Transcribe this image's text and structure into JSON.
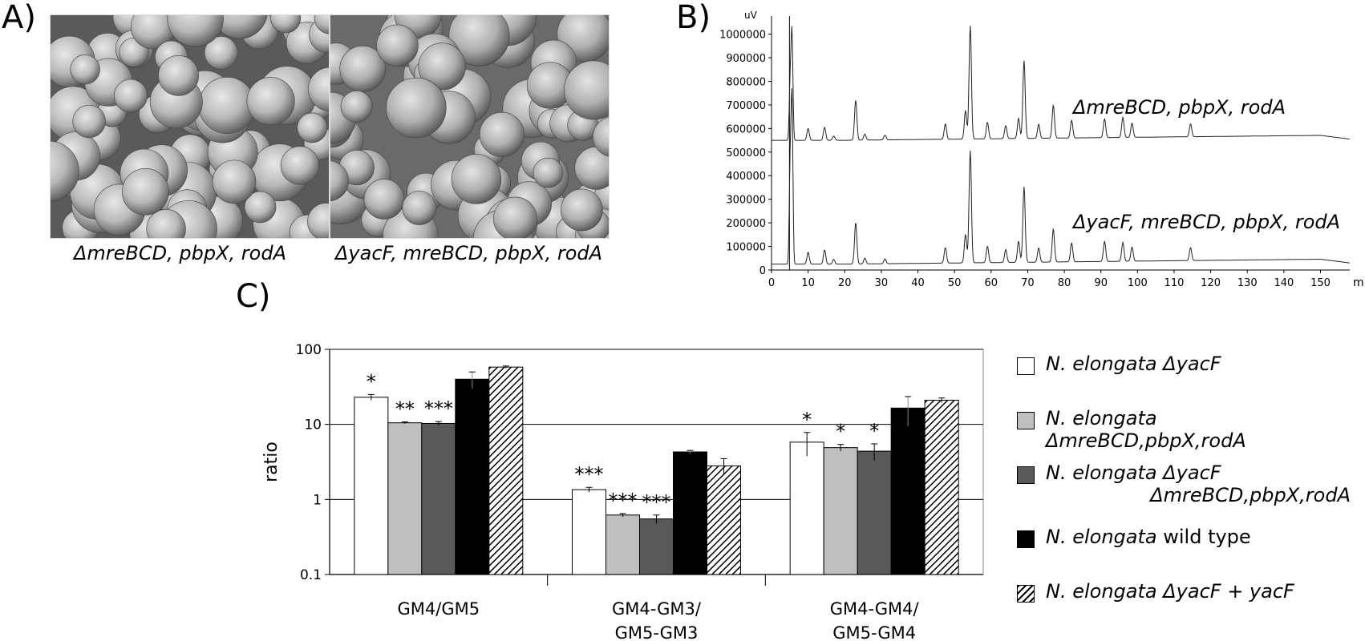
{
  "panelA": {
    "letter": "A)",
    "images": [
      {
        "caption": "ΔmreBCD, pbpX, rodA"
      },
      {
        "caption": "ΔyacF, mreBCD, pbpX, rodA"
      }
    ]
  },
  "panelB": {
    "letter": "B)",
    "y_unit": "uV",
    "x_unit": "min",
    "y_ticks": [
      "1000000",
      "900000",
      "800000",
      "700000",
      "600000",
      "500000",
      "400000",
      "300000",
      "200000",
      "100000",
      "0"
    ],
    "x_ticks": [
      "0",
      "10",
      "20",
      "30",
      "40",
      "50",
      "60",
      "70",
      "80",
      "90",
      "100",
      "110",
      "120",
      "130",
      "140",
      "150"
    ],
    "trace_labels": [
      "ΔmreBCD, pbpX, rodA",
      "ΔyacF, mreBCD, pbpX, rodA"
    ]
  },
  "chart_data": [
    {
      "type": "line",
      "panel": "B",
      "xlim": [
        0,
        158
      ],
      "ylim": [
        0,
        1070000
      ],
      "xlabel": "min",
      "ylabel": "uV",
      "grid": false,
      "series": [
        {
          "name": "ΔmreBCD, pbpX, rodA",
          "baseline": 550000,
          "peaks": [
            {
              "x": 5.1,
              "y": 800000
            },
            {
              "x": 5.6,
              "y": 995000
            },
            {
              "x": 10,
              "y": 600000
            },
            {
              "x": 14.5,
              "y": 605000
            },
            {
              "x": 17,
              "y": 568000
            },
            {
              "x": 23,
              "y": 720000
            },
            {
              "x": 25.5,
              "y": 575000
            },
            {
              "x": 31,
              "y": 570000
            },
            {
              "x": 47.5,
              "y": 615000
            },
            {
              "x": 53,
              "y": 670000
            },
            {
              "x": 54.3,
              "y": 1030000
            },
            {
              "x": 59,
              "y": 620000
            },
            {
              "x": 64,
              "y": 605000
            },
            {
              "x": 67.5,
              "y": 635000
            },
            {
              "x": 69,
              "y": 880000
            },
            {
              "x": 73,
              "y": 610000
            },
            {
              "x": 77,
              "y": 690000
            },
            {
              "x": 82,
              "y": 625000
            },
            {
              "x": 91,
              "y": 630000
            },
            {
              "x": 96,
              "y": 635000
            },
            {
              "x": 98.5,
              "y": 610000
            },
            {
              "x": 114.5,
              "y": 605000
            }
          ],
          "end_value": 555000
        },
        {
          "name": "ΔyacF, mreBCD, pbpX, rodA",
          "baseline": 25000,
          "peaks": [
            {
              "x": 5.1,
              "y": 440000
            },
            {
              "x": 5.6,
              "y": 705000
            },
            {
              "x": 10,
              "y": 75000
            },
            {
              "x": 14.5,
              "y": 85000
            },
            {
              "x": 17,
              "y": 45000
            },
            {
              "x": 23,
              "y": 200000
            },
            {
              "x": 25.5,
              "y": 50000
            },
            {
              "x": 31,
              "y": 45000
            },
            {
              "x": 47.5,
              "y": 90000
            },
            {
              "x": 53,
              "y": 145000
            },
            {
              "x": 54.3,
              "y": 500000
            },
            {
              "x": 59,
              "y": 95000
            },
            {
              "x": 64,
              "y": 80000
            },
            {
              "x": 67.5,
              "y": 115000
            },
            {
              "x": 69,
              "y": 345000
            },
            {
              "x": 73,
              "y": 85000
            },
            {
              "x": 77,
              "y": 165000
            },
            {
              "x": 82,
              "y": 105000
            },
            {
              "x": 91,
              "y": 110000
            },
            {
              "x": 96,
              "y": 105000
            },
            {
              "x": 98.5,
              "y": 85000
            },
            {
              "x": 114.5,
              "y": 80000
            }
          ],
          "end_value": 30000
        }
      ]
    },
    {
      "type": "bar",
      "panel": "C",
      "letter": "C)",
      "ylabel": "ratio",
      "yscale": "log",
      "ylim": [
        0.1,
        100
      ],
      "y_ticks": [
        "100",
        "10",
        "1",
        "0.1"
      ],
      "grid": true,
      "legend_position": "right",
      "categories": [
        {
          "lines": [
            "GM4/GM5"
          ]
        },
        {
          "lines": [
            "GM4-GM3/",
            "GM5-GM3"
          ]
        },
        {
          "lines": [
            "GM4-GM4/",
            "GM5-GM4"
          ]
        }
      ],
      "series": [
        {
          "name_lines": [
            {
              "italic": "N. elongata",
              "rest": " ΔyacF"
            }
          ],
          "fill": "#ffffff",
          "values": [
            23,
            1.35,
            5.8
          ],
          "errors": [
            2,
            0.1,
            2.0
          ],
          "stars": [
            "*",
            "***",
            "*"
          ]
        },
        {
          "name_lines": [
            {
              "italic": "N. elongata",
              "rest": " ΔmreBCD,pbpX,rodA"
            }
          ],
          "fill": "#bfbfbf",
          "values": [
            10.5,
            0.62,
            4.9
          ],
          "errors": [
            0.3,
            0.03,
            0.5
          ],
          "stars": [
            "**",
            "***",
            "*"
          ]
        },
        {
          "name_lines": [
            {
              "italic": "N. elongata",
              "rest": " ΔyacF"
            },
            {
              "italic": "",
              "rest": "ΔmreBCD,pbpX,rodA"
            }
          ],
          "fill": "#595959",
          "values": [
            10.3,
            0.55,
            4.4
          ],
          "errors": [
            0.6,
            0.07,
            1.1
          ],
          "stars": [
            "***",
            "***",
            "*"
          ]
        },
        {
          "name_lines": [
            {
              "italic": "N. elongata",
              "rest": " wild type"
            }
          ],
          "fill": "#000000",
          "values": [
            40,
            4.3,
            16.5
          ],
          "errors": [
            10,
            0.2,
            7
          ],
          "stars": [
            "",
            "",
            ""
          ]
        },
        {
          "name_lines": [
            {
              "italic": "N. elongata",
              "rest": " ΔyacF + yacF"
            }
          ],
          "fill": "hatch",
          "values": [
            58,
            2.8,
            21
          ],
          "errors": [
            2,
            0.7,
            1.5
          ],
          "stars": [
            "",
            "",
            ""
          ]
        }
      ]
    }
  ]
}
